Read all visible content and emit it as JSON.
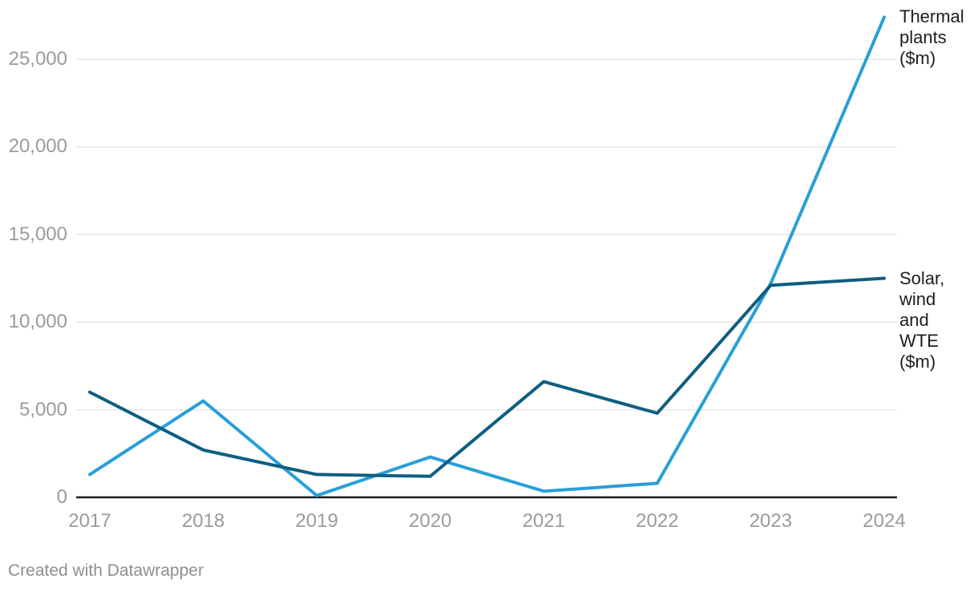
{
  "chart_data": {
    "type": "line",
    "title": "",
    "x_categories": [
      "2017",
      "2018",
      "2019",
      "2020",
      "2021",
      "2022",
      "2023",
      "2024"
    ],
    "series": [
      {
        "name": "Thermal plants ($m)",
        "color": "#28a0d7",
        "values": [
          1300,
          5500,
          100,
          2300,
          350,
          800,
          12200,
          27400
        ]
      },
      {
        "name": "Solar, wind and WTE ($m)",
        "color": "#0e5e82",
        "values": [
          6000,
          2700,
          1300,
          1200,
          6600,
          4800,
          12100,
          12500
        ]
      }
    ],
    "y_axis": {
      "tick_values": [
        0,
        5000,
        10000,
        15000,
        20000,
        25000
      ],
      "tick_labels": [
        "0",
        "5,000",
        "10,000",
        "15,000",
        "20,000",
        "25,000"
      ]
    },
    "ylim": [
      0,
      27500
    ],
    "grid": "horizontal-lines-only",
    "legend_position": "direct-labels-right-of-line-ends"
  },
  "footer": {
    "attribution": "Created with Datawrapper"
  },
  "colors": {
    "background": "#ffffff",
    "grid_line": "#e4e4e4",
    "axis_line": "#1a1a1a",
    "tick_text": "#9b9b9b",
    "label_text": "#1d1d1d",
    "thermal_line": "#28a0d7",
    "solar_line": "#0e5e82"
  }
}
